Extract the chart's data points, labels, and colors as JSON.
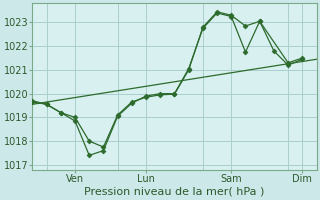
{
  "xlabel": "Pression niveau de la mer( hPa )",
  "bg_color": "#cce8e8",
  "grid_color": "#aacece",
  "line_color": "#2d6b2d",
  "plot_bg": "#d8f0f0",
  "ylim": [
    1016.8,
    1023.8
  ],
  "yticks": [
    1017,
    1018,
    1019,
    1020,
    1021,
    1022,
    1023
  ],
  "xlim": [
    0,
    20
  ],
  "xtick_day_positions": [
    3,
    8,
    14,
    19
  ],
  "xtick_day_labels": [
    "Ven",
    "Lun",
    "Sam",
    "Dim"
  ],
  "vline_positions": [
    1,
    6,
    12,
    18
  ],
  "series1_x": [
    0,
    1,
    2,
    3,
    4,
    5,
    6,
    7,
    8,
    9,
    10,
    11,
    12,
    13,
    14,
    15,
    16,
    17,
    18,
    19
  ],
  "series1_y": [
    1019.7,
    1019.55,
    1019.2,
    1018.85,
    1017.4,
    1017.6,
    1019.05,
    1019.6,
    1019.9,
    1020.0,
    1020.0,
    1021.05,
    1022.75,
    1023.4,
    1023.25,
    1021.75,
    1023.05,
    1021.8,
    1021.2,
    1021.45
  ],
  "series2_x": [
    0,
    1,
    2,
    3,
    4,
    5,
    6,
    7,
    8,
    9,
    10,
    11,
    12,
    13,
    14,
    15,
    16,
    18,
    19
  ],
  "series2_y": [
    1019.65,
    1019.55,
    1019.2,
    1019.0,
    1018.0,
    1017.75,
    1019.1,
    1019.65,
    1019.85,
    1019.95,
    1019.98,
    1021.0,
    1022.8,
    1023.45,
    1023.3,
    1022.85,
    1023.05,
    1021.3,
    1021.5
  ],
  "series3_x": [
    0,
    20
  ],
  "series3_y": [
    1019.55,
    1021.45
  ],
  "xlabel_fontsize": 8,
  "tick_fontsize": 7
}
